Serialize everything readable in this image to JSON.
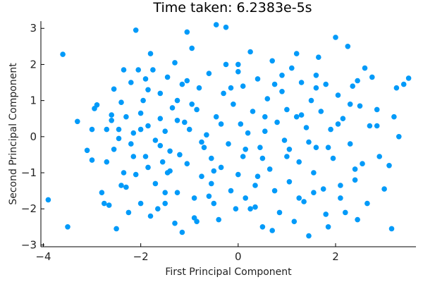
{
  "chart_data": {
    "type": "scatter",
    "title": "Time taken: 6.2383e-5s",
    "xlabel": "First Principal Component",
    "ylabel": "Second Principal Component",
    "xlim": [
      -4.05,
      3.65
    ],
    "ylim": [
      -3.05,
      3.2
    ],
    "xticks": [
      -4,
      -2,
      0,
      2
    ],
    "xtick_labels": [
      "−4",
      "−2",
      "0",
      "2"
    ],
    "yticks": [
      -3,
      -2,
      -1,
      0,
      1,
      2,
      3
    ],
    "yticks_labels": [
      "−3",
      "−2",
      "−1",
      "0",
      "1",
      "2",
      "3"
    ],
    "grid": false,
    "legend": "none",
    "marker_color": "#009AF9",
    "points": [
      [
        -3.6,
        2.28
      ],
      [
        -3.9,
        -1.75
      ],
      [
        -3.5,
        -2.5
      ],
      [
        -3.3,
        0.42
      ],
      [
        -3.1,
        -0.38
      ],
      [
        -3.0,
        0.2
      ],
      [
        -3.0,
        -0.65
      ],
      [
        -2.95,
        0.78
      ],
      [
        -2.9,
        0.88
      ],
      [
        -2.8,
        -1.55
      ],
      [
        -2.7,
        0.2
      ],
      [
        -2.7,
        -0.7
      ],
      [
        -2.65,
        -1.9
      ],
      [
        -2.6,
        0.45
      ],
      [
        -2.55,
        1.32
      ],
      [
        -2.55,
        -0.35
      ],
      [
        -2.5,
        -2.55
      ],
      [
        -2.45,
        0.2
      ],
      [
        -2.4,
        0.95
      ],
      [
        -2.35,
        1.85
      ],
      [
        -2.35,
        -1.0
      ],
      [
        -2.3,
        -1.4
      ],
      [
        -2.3,
        0.55
      ],
      [
        -2.25,
        -2.1
      ],
      [
        -2.2,
        -0.2
      ],
      [
        -2.2,
        1.5
      ],
      [
        -2.15,
        0.1
      ],
      [
        -2.1,
        -1.05
      ],
      [
        -2.05,
        1.85
      ],
      [
        -2.0,
        0.65
      ],
      [
        -2.0,
        -1.85
      ],
      [
        -1.95,
        1.0
      ],
      [
        -1.9,
        1.6
      ],
      [
        -1.9,
        -0.55
      ],
      [
        -1.85,
        0.3
      ],
      [
        -1.8,
        -2.2
      ],
      [
        -1.8,
        2.3
      ],
      [
        -1.75,
        1.85
      ],
      [
        -1.7,
        -1.3
      ],
      [
        -1.7,
        -0.1
      ],
      [
        -1.65,
        -2.0
      ],
      [
        -1.6,
        0.5
      ],
      [
        -1.6,
        1.2
      ],
      [
        -1.55,
        -0.7
      ],
      [
        -1.5,
        -1.55
      ],
      [
        -1.5,
        0.15
      ],
      [
        -1.45,
        1.65
      ],
      [
        -1.45,
        -1.0
      ],
      [
        -1.4,
        -0.4
      ],
      [
        -1.35,
        0.8
      ],
      [
        -1.3,
        2.05
      ],
      [
        -1.3,
        -2.4
      ],
      [
        -1.25,
        1.0
      ],
      [
        -1.2,
        -0.5
      ],
      [
        -1.15,
        1.45
      ],
      [
        -1.1,
        0.4
      ],
      [
        -1.05,
        -0.75
      ],
      [
        -1.0,
        0.2
      ],
      [
        -0.95,
        2.45
      ],
      [
        -0.9,
        -2.25
      ],
      [
        -0.9,
        -1.7
      ],
      [
        -0.85,
        0.75
      ],
      [
        -0.8,
        1.35
      ],
      [
        -0.75,
        -1.1
      ],
      [
        -0.7,
        -0.3
      ],
      [
        -0.65,
        0.05
      ],
      [
        -0.6,
        1.75
      ],
      [
        -0.55,
        -0.6
      ],
      [
        -0.5,
        -1.85
      ],
      [
        -0.45,
        3.1
      ],
      [
        -0.45,
        0.55
      ],
      [
        -0.4,
        -2.3
      ],
      [
        -0.35,
        -0.85
      ],
      [
        -0.3,
        1.2
      ],
      [
        -0.25,
        2.0
      ],
      [
        -0.2,
        -0.2
      ],
      [
        -0.15,
        -1.5
      ],
      [
        -0.1,
        0.9
      ],
      [
        -0.05,
        -2.0
      ],
      [
        0.0,
        2.0
      ],
      [
        0.0,
        -1.05
      ],
      [
        0.05,
        0.35
      ],
      [
        0.1,
        -0.55
      ],
      [
        0.1,
        1.4
      ],
      [
        0.15,
        -1.7
      ],
      [
        0.2,
        0.1
      ],
      [
        0.25,
        2.35
      ],
      [
        0.25,
        -2.0
      ],
      [
        0.3,
        0.7
      ],
      [
        0.35,
        -1.35
      ],
      [
        0.4,
        1.6
      ],
      [
        0.45,
        -0.3
      ],
      [
        0.5,
        -2.5
      ],
      [
        0.55,
        0.15
      ],
      [
        0.6,
        1.05
      ],
      [
        0.65,
        -0.9
      ],
      [
        0.7,
        2.1
      ],
      [
        0.75,
        -1.5
      ],
      [
        0.8,
        0.4
      ],
      [
        0.85,
        -2.1
      ],
      [
        0.9,
        1.25
      ],
      [
        0.95,
        -0.1
      ],
      [
        1.0,
        0.75
      ],
      [
        1.05,
        -1.25
      ],
      [
        1.1,
        1.9
      ],
      [
        1.15,
        -2.35
      ],
      [
        1.2,
        0.55
      ],
      [
        1.25,
        -0.7
      ],
      [
        1.3,
        1.5
      ],
      [
        1.35,
        -1.8
      ],
      [
        1.4,
        0.25
      ],
      [
        1.45,
        -2.75
      ],
      [
        1.5,
        1.0
      ],
      [
        1.55,
        -1.0
      ],
      [
        1.6,
        -0.3
      ],
      [
        1.65,
        2.2
      ],
      [
        1.7,
        0.7
      ],
      [
        1.75,
        -1.45
      ],
      [
        1.8,
        1.45
      ],
      [
        1.85,
        -2.5
      ],
      [
        1.9,
        0.2
      ],
      [
        1.95,
        -0.6
      ],
      [
        2.0,
        2.75
      ],
      [
        2.05,
        1.15
      ],
      [
        2.1,
        -1.7
      ],
      [
        2.15,
        0.5
      ],
      [
        2.2,
        -2.1
      ],
      [
        2.25,
        2.5
      ],
      [
        2.3,
        -0.2
      ],
      [
        2.35,
        1.4
      ],
      [
        2.4,
        -1.2
      ],
      [
        2.45,
        -2.3
      ],
      [
        2.5,
        0.85
      ],
      [
        2.55,
        -0.75
      ],
      [
        2.6,
        1.9
      ],
      [
        2.65,
        -1.85
      ],
      [
        2.7,
        0.3
      ],
      [
        2.75,
        1.65
      ],
      [
        2.85,
        0.75
      ],
      [
        2.9,
        -0.55
      ],
      [
        3.0,
        -1.45
      ],
      [
        3.1,
        -0.8
      ],
      [
        3.15,
        -2.55
      ],
      [
        3.2,
        0.55
      ],
      [
        3.25,
        1.35
      ],
      [
        3.3,
        0.0
      ],
      [
        3.4,
        1.45
      ],
      [
        3.5,
        1.62
      ],
      [
        2.85,
        0.3
      ],
      [
        1.2,
        2.3
      ],
      [
        -2.1,
        2.95
      ],
      [
        -1.05,
        2.9
      ],
      [
        -0.25,
        3.03
      ],
      [
        -0.85,
        -2.35
      ],
      [
        -1.15,
        -2.65
      ],
      [
        0.7,
        -2.6
      ],
      [
        1.8,
        -2.15
      ],
      [
        -2.75,
        -1.85
      ],
      [
        -2.15,
        -0.55
      ],
      [
        -1.25,
        -1.55
      ],
      [
        -0.55,
        -1.3
      ],
      [
        0.4,
        -1.1
      ],
      [
        1.0,
        -0.55
      ],
      [
        1.55,
        -1.55
      ],
      [
        2.4,
        -0.9
      ],
      [
        -2.45,
        -0.05
      ],
      [
        -1.85,
        -0.85
      ],
      [
        -0.95,
        0.9
      ],
      [
        0.0,
        1.8
      ],
      [
        0.9,
        1.7
      ],
      [
        1.6,
        1.35
      ],
      [
        2.3,
        0.9
      ],
      [
        -2.0,
        0.2
      ],
      [
        -1.25,
        0.45
      ],
      [
        -0.35,
        0.35
      ],
      [
        0.55,
        0.55
      ],
      [
        1.3,
        0.6
      ],
      [
        2.05,
        0.35
      ],
      [
        -1.6,
        -0.25
      ],
      [
        -0.75,
        -0.15
      ],
      [
        0.15,
        -0.35
      ],
      [
        1.05,
        -0.35
      ],
      [
        1.85,
        -0.3
      ],
      [
        -2.4,
        -1.35
      ],
      [
        -1.5,
        -1.85
      ],
      [
        -0.6,
        -1.65
      ],
      [
        0.35,
        -1.95
      ],
      [
        1.25,
        -1.7
      ],
      [
        2.1,
        -1.35
      ],
      [
        -1.85,
        1.3
      ],
      [
        -1.05,
        1.55
      ],
      [
        -0.15,
        1.35
      ],
      [
        0.75,
        1.45
      ],
      [
        1.6,
        1.7
      ],
      [
        2.45,
        1.55
      ],
      [
        -2.6,
        0.6
      ],
      [
        -1.4,
        -0.95
      ],
      [
        -0.5,
        -0.95
      ],
      [
        0.5,
        -0.6
      ],
      [
        1.45,
        -0.15
      ]
    ]
  }
}
